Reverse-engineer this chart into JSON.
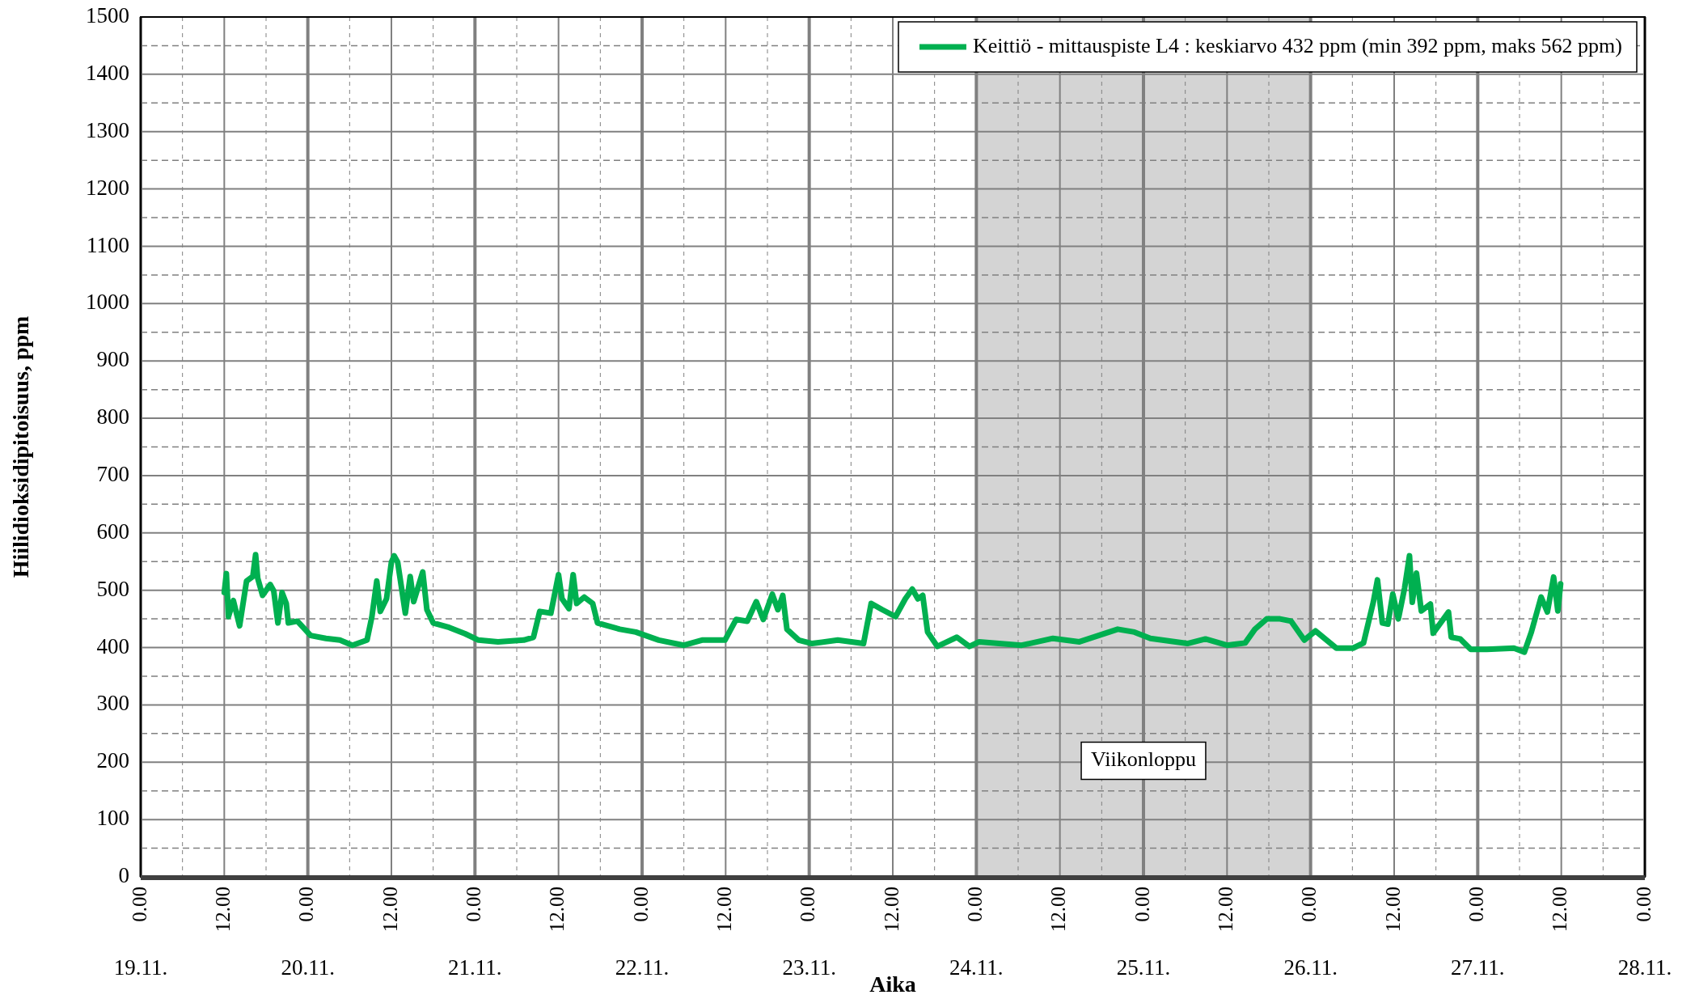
{
  "chart_data": {
    "type": "line",
    "xlabel": "Aika",
    "ylabel": "Hiilidioksidipitoisuus, ppm",
    "xlim": [
      "--11-19T00:00",
      "--11-28T00:00"
    ],
    "ylim": [
      0,
      1500
    ],
    "xticks": [
      {
        "value": "--11-19T00:00",
        "label": "0.00"
      },
      {
        "value": "--11-19T12:00",
        "label": "12.00"
      },
      {
        "value": "--11-20T00:00",
        "label": "0.00"
      },
      {
        "value": "--11-20T12:00",
        "label": "12.00"
      },
      {
        "value": "--11-21T00:00",
        "label": "0.00"
      },
      {
        "value": "--11-21T12:00",
        "label": "12.00"
      },
      {
        "value": "--11-22T00:00",
        "label": "0.00"
      },
      {
        "value": "--11-22T12:00",
        "label": "12.00"
      },
      {
        "value": "--11-23T00:00",
        "label": "0.00"
      },
      {
        "value": "--11-23T12:00",
        "label": "12.00"
      },
      {
        "value": "--11-24T00:00",
        "label": "0.00"
      },
      {
        "value": "--11-24T12:00",
        "label": "12.00"
      },
      {
        "value": "--11-25T00:00",
        "label": "0.00"
      },
      {
        "value": "--11-25T12:00",
        "label": "12.00"
      },
      {
        "value": "--11-26T00:00",
        "label": "0.00"
      },
      {
        "value": "--11-26T12:00",
        "label": "12.00"
      },
      {
        "value": "--11-27T00:00",
        "label": "0.00"
      },
      {
        "value": "--11-27T12:00",
        "label": "12.00"
      },
      {
        "value": "--11-28T00:00",
        "label": "0.00"
      }
    ],
    "yticks": [
      0,
      100,
      200,
      300,
      400,
      500,
      600,
      700,
      800,
      900,
      1000,
      1100,
      1200,
      1300,
      1400,
      1500
    ],
    "annotations": [
      "19.11.",
      "20.11.",
      "21.11.",
      "22.11.",
      "23.11.",
      "24.11.",
      "25.11.",
      "26.11.",
      "27.11.",
      "28.11."
    ],
    "grid": true,
    "legend": "top right",
    "line_style": "solid",
    "bands": [
      {
        "axis": "x",
        "from": "--11-24T00:00",
        "to": "--11-26T00:00",
        "label": "Viikonloppu",
        "color": "#d4d4d4"
      }
    ],
    "series": [
      {
        "name": "Keittiö - mittauspiste L4 : keskiarvo 432 ppm (min 392 ppm, maks 562 ppm)",
        "color": "#00b050",
        "x": [
          "--11-19T12:00",
          "--11-19T12:18",
          "--11-19T12:36",
          "--11-19T13:18",
          "--11-19T14:12",
          "--11-19T15:12",
          "--11-19T16:06",
          "--11-19T16:30",
          "--11-19T16:48",
          "--11-19T17:30",
          "--11-19T18:36",
          "--11-19T19:06",
          "--11-19T19:42",
          "--11-19T20:18",
          "--11-19T20:54",
          "--11-19T21:12",
          "--11-19T22:30",
          "--11-20T00:24",
          "--11-20T02:36",
          "--11-20T04:36",
          "--11-20T06:24",
          "--11-20T08:30",
          "--11-20T09:12",
          "--11-20T09:54",
          "--11-20T10:24",
          "--11-20T11:18",
          "--11-20T12:00",
          "--11-20T12:24",
          "--11-20T12:54",
          "--11-20T14:00",
          "--11-20T14:42",
          "--11-20T15:12",
          "--11-20T15:48",
          "--11-20T16:30",
          "--11-20T17:06",
          "--11-20T18:00",
          "--11-20T20:18",
          "--11-20T22:36",
          "--11-21T00:30",
          "--11-21T03:18",
          "--11-21T07:00",
          "--11-21T08:24",
          "--11-21T09:18",
          "--11-21T10:54",
          "--11-21T12:00",
          "--11-21T12:30",
          "--11-21T13:30",
          "--11-21T14:06",
          "--11-21T14:36",
          "--11-21T15:42",
          "--11-21T16:54",
          "--11-21T17:36",
          "--11-21T20:48",
          "--11-21T23:06",
          "--11-22T02:24",
          "--11-22T06:00",
          "--11-22T08:36",
          "--11-22T11:54",
          "--11-22T13:30",
          "--11-22T15:06",
          "--11-22T16:24",
          "--11-22T17:24",
          "--11-22T18:42",
          "--11-22T19:30",
          "--11-22T20:12",
          "--11-22T20:48",
          "--11-22T22:30",
          "--11-23T00:24",
          "--11-23T04:06",
          "--11-23T07:48",
          "--11-23T08:54",
          "--11-23T10:30",
          "--11-23T12:24",
          "--11-23T13:48",
          "--11-23T14:48",
          "--11-23T15:36",
          "--11-23T16:18",
          "--11-23T17:00",
          "--11-23T18:24",
          "--11-23T21:12",
          "--11-23T23:00",
          "--11-24T00:24",
          "--11-24T06:30",
          "--11-24T11:00",
          "--11-24T14:48",
          "--11-24T20:18",
          "--11-24T22:42",
          "--11-25T01:00",
          "--11-25T06:18",
          "--11-25T08:54",
          "--11-25T12:00",
          "--11-25T14:36",
          "--11-25T16:00",
          "--11-25T17:42",
          "--11-25T19:36",
          "--11-25T21:12",
          "--11-25T23:06",
          "--11-26T00:42",
          "--11-26T03:42",
          "--11-26T06:06",
          "--11-26T07:36",
          "--11-26T09:00",
          "--11-26T09:36",
          "--11-26T10:18",
          "--11-26T11:06",
          "--11-26T11:48",
          "--11-26T12:36",
          "--11-26T13:30",
          "--11-26T14:12",
          "--11-26T14:36",
          "--11-26T15:12",
          "--11-26T15:54",
          "--11-26T17:12",
          "--11-26T17:36",
          "--11-26T19:48",
          "--11-26T20:12",
          "--11-26T21:30",
          "--11-26T23:00",
          "--11-27T01:18",
          "--11-27T05:12",
          "--11-27T06:42",
          "--11-27T07:42",
          "--11-27T09:06",
          "--11-27T10:00",
          "--11-27T10:54",
          "--11-27T11:30",
          "--11-27T11:54"
        ],
        "values": [
          496,
          529,
          454,
          482,
          438,
          516,
          524,
          562,
          521,
          491,
          510,
          499,
          443,
          496,
          477,
          443,
          446,
          421,
          416,
          413,
          404,
          413,
          454,
          516,
          463,
          485,
          549,
          560,
          549,
          460,
          524,
          480,
          504,
          532,
          466,
          443,
          435,
          424,
          413,
          410,
          413,
          418,
          463,
          460,
          527,
          485,
          468,
          527,
          477,
          488,
          477,
          443,
          432,
          427,
          413,
          404,
          413,
          413,
          449,
          446,
          480,
          449,
          493,
          466,
          491,
          432,
          413,
          407,
          413,
          407,
          477,
          466,
          454,
          485,
          502,
          485,
          491,
          427,
          402,
          418,
          402,
          410,
          404,
          416,
          410,
          432,
          427,
          416,
          407,
          415,
          404,
          408,
          432,
          450,
          450,
          446,
          413,
          429,
          399,
          399,
          408,
          479,
          518,
          443,
          441,
          493,
          450,
          504,
          560,
          479,
          530,
          464,
          476,
          425,
          462,
          418,
          415,
          397,
          397,
          399,
          392,
          427,
          488,
          462,
          523,
          464,
          511
        ]
      }
    ]
  }
}
